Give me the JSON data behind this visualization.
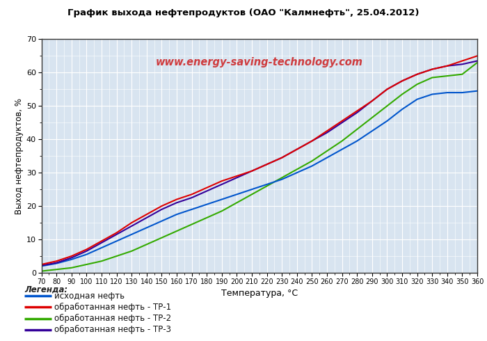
{
  "title": "График выхода нефтепродуктов (ОАО \"Калмнефть\", 25.04.2012)",
  "xlabel": "Температура, °С",
  "ylabel": "Выход нефтепродуктов, %",
  "watermark": "www.energy-saving-technology.com",
  "legend_title": "Легенда:",
  "legend_items": [
    {
      "label": "исходная нефть",
      "color": "#0055CC"
    },
    {
      "label": "обработанная нефть - ТР-1",
      "color": "#DD0000"
    },
    {
      "label": "обработанная нефть - ТР-2",
      "color": "#33AA00"
    },
    {
      "label": "обработанная нефть - ТР-3",
      "color": "#330099"
    }
  ],
  "xlim": [
    70,
    360
  ],
  "ylim": [
    0,
    70
  ],
  "xticks": [
    70,
    80,
    90,
    100,
    110,
    120,
    130,
    140,
    150,
    160,
    170,
    180,
    190,
    200,
    210,
    220,
    230,
    240,
    250,
    260,
    270,
    280,
    290,
    300,
    310,
    320,
    330,
    340,
    350,
    360
  ],
  "yticks": [
    0,
    10,
    20,
    30,
    40,
    50,
    60,
    70
  ],
  "background_color": "#FFFFFF",
  "plot_bg_color": "#D8E4F0",
  "grid_color": "#FFFFFF",
  "series": {
    "blue": {
      "x": [
        70,
        80,
        90,
        100,
        110,
        120,
        130,
        140,
        150,
        160,
        170,
        180,
        190,
        200,
        210,
        220,
        230,
        240,
        250,
        260,
        270,
        280,
        290,
        300,
        310,
        320,
        330,
        340,
        350,
        360
      ],
      "y": [
        2.0,
        2.8,
        4.0,
        5.5,
        7.5,
        9.5,
        11.5,
        13.5,
        15.5,
        17.5,
        19.0,
        20.5,
        22.0,
        23.5,
        25.0,
        26.5,
        28.0,
        30.0,
        32.0,
        34.5,
        37.0,
        39.5,
        42.5,
        45.5,
        49.0,
        52.0,
        53.5,
        54.0,
        54.0,
        54.5
      ]
    },
    "red": {
      "x": [
        70,
        80,
        90,
        100,
        110,
        120,
        130,
        140,
        150,
        160,
        170,
        180,
        190,
        200,
        210,
        220,
        230,
        240,
        250,
        260,
        270,
        280,
        290,
        300,
        310,
        320,
        330,
        340,
        350,
        360
      ],
      "y": [
        2.5,
        3.5,
        5.0,
        7.0,
        9.5,
        12.0,
        15.0,
        17.5,
        20.0,
        22.0,
        23.5,
        25.5,
        27.5,
        29.0,
        30.5,
        32.5,
        34.5,
        37.0,
        39.5,
        42.5,
        45.5,
        48.5,
        51.5,
        55.0,
        57.5,
        59.5,
        61.0,
        62.0,
        63.5,
        65.0
      ]
    },
    "green": {
      "x": [
        70,
        80,
        90,
        100,
        110,
        120,
        130,
        140,
        150,
        160,
        170,
        180,
        190,
        200,
        210,
        220,
        230,
        240,
        250,
        260,
        270,
        280,
        290,
        300,
        310,
        320,
        330,
        340,
        350,
        360
      ],
      "y": [
        0.5,
        1.0,
        1.5,
        2.5,
        3.5,
        5.0,
        6.5,
        8.5,
        10.5,
        12.5,
        14.5,
        16.5,
        18.5,
        21.0,
        23.5,
        26.0,
        28.5,
        31.0,
        33.5,
        36.5,
        39.5,
        43.0,
        46.5,
        50.0,
        53.5,
        56.5,
        58.5,
        59.0,
        59.5,
        63.0
      ]
    },
    "purple": {
      "x": [
        70,
        80,
        90,
        100,
        110,
        120,
        130,
        140,
        150,
        160,
        170,
        180,
        190,
        200,
        210,
        220,
        230,
        240,
        250,
        260,
        270,
        280,
        290,
        300,
        310,
        320,
        330,
        340,
        350,
        360
      ],
      "y": [
        2.2,
        3.0,
        4.5,
        6.5,
        9.0,
        11.5,
        14.0,
        16.5,
        19.0,
        21.0,
        22.5,
        24.5,
        26.5,
        28.5,
        30.5,
        32.5,
        34.5,
        37.0,
        39.5,
        42.0,
        45.0,
        48.0,
        51.5,
        55.0,
        57.5,
        59.5,
        61.0,
        62.0,
        62.5,
        63.5
      ]
    }
  }
}
